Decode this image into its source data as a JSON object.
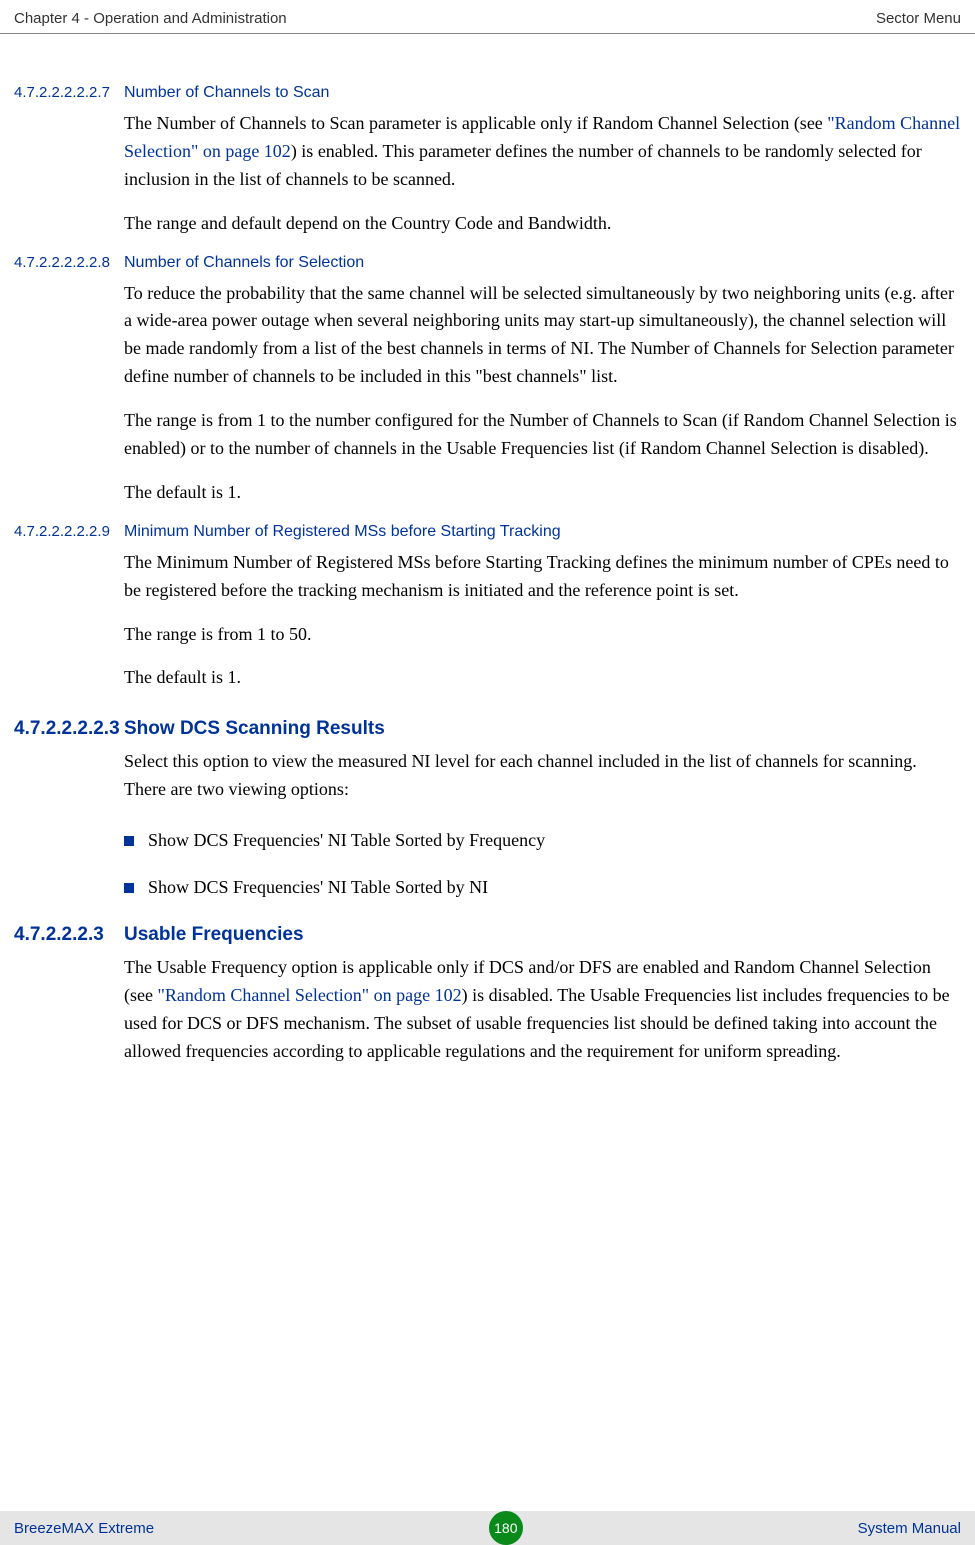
{
  "header": {
    "left": "Chapter 4 - Operation and Administration",
    "right": "Sector Menu"
  },
  "sections": [
    {
      "num": "4.7.2.2.2.2.2.7",
      "title": "Number of Channels to Scan",
      "style": "blue",
      "paras": [
        {
          "pre": "The Number of Channels to Scan parameter is applicable only if Random Channel Selection (see ",
          "link": "\"Random Channel Selection\" on page 102",
          "post": ") is enabled. This parameter defines the number of channels to be randomly selected for inclusion in the list of channels to be scanned."
        },
        {
          "text": "The range and default depend on the Country Code and Bandwidth."
        }
      ]
    },
    {
      "num": "4.7.2.2.2.2.2.8",
      "title": "Number of Channels for Selection",
      "style": "blue",
      "paras": [
        {
          "text": "To reduce the probability that the same channel will be selected simultaneously by two neighboring units (e.g. after a wide-area power outage when several neighboring units may start-up simultaneously), the channel selection will be made randomly from a list of the best channels in terms of NI. The Number of Channels for Selection parameter define number of channels to be included in this \"best channels\" list."
        },
        {
          "text": "The range is from 1 to the number configured for the Number of Channels to Scan (if Random Channel Selection is enabled) or to the number of channels in the Usable Frequencies list (if Random Channel Selection is disabled)."
        },
        {
          "text": "The default is 1."
        }
      ]
    },
    {
      "num": "4.7.2.2.2.2.2.9",
      "title": "Minimum Number of Registered MSs before Starting Tracking",
      "style": "blue",
      "paras": [
        {
          "text": "The Minimum Number of Registered MSs before Starting Tracking defines the minimum number of CPEs need to be registered before the tracking mechanism is initiated and the reference point is set."
        },
        {
          "text": "The range is from 1 to 50."
        },
        {
          "text": "The default is 1."
        }
      ]
    },
    {
      "num": "4.7.2.2.2.2.3",
      "title": "Show DCS Scanning Results",
      "style": "bigblue",
      "paras": [
        {
          "text": "Select this option to view the measured NI level for each channel included in the list of channels for scanning. There are two viewing options:"
        }
      ],
      "bullets": [
        "Show DCS Frequencies' NI Table Sorted by Frequency",
        "Show DCS Frequencies' NI Table Sorted by NI"
      ]
    },
    {
      "num": "4.7.2.2.2.3",
      "title": "Usable Frequencies",
      "style": "bigblue",
      "paras": [
        {
          "pre": "The Usable Frequency option is applicable only if DCS and/or DFS are enabled and Random Channel Selection (see ",
          "link": "\"Random Channel Selection\" on page 102",
          "post": ") is disabled. The Usable Frequencies list includes frequencies to be used for DCS or DFS mechanism. The subset of usable frequencies list should be defined taking into account the allowed frequencies according to applicable regulations and the requirement for uniform spreading."
        }
      ]
    }
  ],
  "footer": {
    "left": "BreezeMAX Extreme",
    "page": "180",
    "right": "System Manual"
  },
  "colors": {
    "link_blue": "#003399",
    "badge_green": "#0a8a1a",
    "footer_bg": "#e5e5e5"
  }
}
